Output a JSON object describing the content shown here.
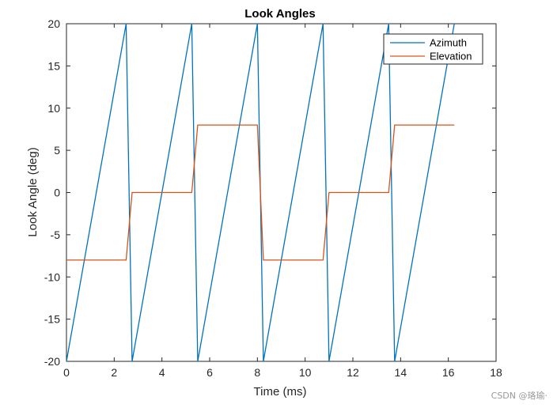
{
  "chart_data": {
    "type": "line",
    "title": "Look Angles",
    "xlabel": "Time (ms)",
    "ylabel": "Look Angle (deg)",
    "xlim": [
      0,
      18
    ],
    "ylim": [
      -20,
      20
    ],
    "xticks": [
      0,
      2,
      4,
      6,
      8,
      10,
      12,
      14,
      16,
      18
    ],
    "yticks": [
      -20,
      -15,
      -10,
      -5,
      0,
      5,
      10,
      15,
      20
    ],
    "legend_position": "top-right",
    "series": [
      {
        "name": "Azimuth",
        "color": "#0072BD",
        "x": [
          0,
          2.5,
          2.75,
          5.25,
          5.5,
          8.0,
          8.25,
          10.75,
          11.0,
          13.5,
          13.75,
          16.25
        ],
        "y": [
          -20,
          20,
          -20,
          20,
          -20,
          20,
          -20,
          20,
          -20,
          20,
          -20,
          20
        ]
      },
      {
        "name": "Elevation",
        "color": "#D95319",
        "x": [
          0,
          2.5,
          2.75,
          5.25,
          5.5,
          8.0,
          8.25,
          10.75,
          11.0,
          13.5,
          13.75,
          16.25
        ],
        "y": [
          -8,
          -8,
          0,
          0,
          8,
          8,
          -8,
          -8,
          0,
          0,
          8,
          8
        ]
      }
    ]
  },
  "watermark": "CSDN @珞瑜·"
}
